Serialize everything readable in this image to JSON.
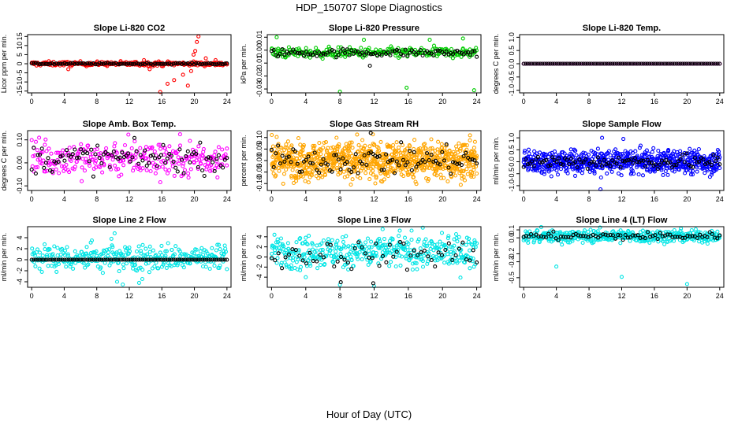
{
  "figure": {
    "title": "HDP_150707  Slope Diagnostics",
    "xlabel": "Hour of Day (UTC)"
  },
  "chart_data": [
    {
      "type": "scatter",
      "title": "Slope Li-820 CO2",
      "ylabel": "Licor ppm per min.",
      "xlim": [
        -0.5,
        24.5
      ],
      "ylim": [
        -16,
        16
      ],
      "xticks": [
        "0",
        "4",
        "8",
        "12",
        "16",
        "20",
        "24"
      ],
      "yticks": [
        {
          "v": -15,
          "label": "-15"
        },
        {
          "v": -10,
          "label": "-10"
        },
        {
          "v": -5,
          "label": "-5"
        },
        {
          "v": 0,
          "label": "0"
        },
        {
          "v": 5,
          "label": "5"
        },
        {
          "v": 10,
          "label": "10"
        },
        {
          "v": 15,
          "label": "15"
        }
      ],
      "series": [
        {
          "color": "#ff0000",
          "n": 260,
          "center": 0,
          "spread": 0.6,
          "outliers": [
            [
              15.8,
              -15.5
            ],
            [
              16.7,
              -11
            ],
            [
              17.5,
              -9
            ],
            [
              18.6,
              -6
            ],
            [
              19.2,
              -12
            ],
            [
              19.6,
              -4
            ],
            [
              19.9,
              5
            ],
            [
              20.1,
              7
            ],
            [
              20.3,
              12
            ],
            [
              20.5,
              15
            ],
            [
              21.4,
              3
            ],
            [
              22.6,
              2
            ],
            [
              4.5,
              -3
            ],
            [
              13.8,
              2
            ],
            [
              14.5,
              -3
            ]
          ]
        },
        {
          "color": "#000000",
          "n": 96,
          "center": 0,
          "spread": 0.2,
          "outliers": []
        }
      ]
    },
    {
      "type": "scatter",
      "title": "Slope Li-820 Pressure",
      "ylabel": "kPa per min.",
      "xlim": [
        -0.5,
        24.5
      ],
      "ylim": [
        -0.033,
        0.012
      ],
      "xticks": [
        "0",
        "4",
        "8",
        "12",
        "16",
        "20",
        "24"
      ],
      "yticks": [
        {
          "v": -0.03,
          "label": "-0.03"
        },
        {
          "v": -0.02,
          "label": "-0.02"
        },
        {
          "v": -0.01,
          "label": "-0.01"
        },
        {
          "v": 0.0,
          "label": "0.00"
        },
        {
          "v": 0.01,
          "label": "0.01"
        }
      ],
      "series": [
        {
          "color": "#00cc00",
          "n": 260,
          "center": -0.002,
          "spread": 0.002,
          "outliers": [
            [
              0.6,
              0.01
            ],
            [
              8.0,
              -0.032
            ],
            [
              15.8,
              -0.029
            ],
            [
              23.7,
              -0.031
            ],
            [
              18.5,
              0.008
            ],
            [
              22.4,
              0.009
            ],
            [
              10.8,
              0.008
            ]
          ]
        },
        {
          "color": "#000000",
          "n": 96,
          "center": -0.002,
          "spread": 0.0015,
          "outliers": [
            [
              11.5,
              -0.012
            ]
          ]
        }
      ]
    },
    {
      "type": "scatter",
      "title": "Slope Li-820 Temp.",
      "ylabel": "degrees C per min.",
      "xlim": [
        -0.5,
        24.5
      ],
      "ylim": [
        -1.1,
        1.1
      ],
      "xticks": [
        "0",
        "4",
        "8",
        "12",
        "16",
        "20",
        "24"
      ],
      "yticks": [
        {
          "v": -1.0,
          "label": "-1.0"
        },
        {
          "v": -0.5,
          "label": "-0.5"
        },
        {
          "v": 0.0,
          "label": "0.0"
        },
        {
          "v": 0.5,
          "label": "0.5"
        },
        {
          "v": 1.0,
          "label": "1.0"
        }
      ],
      "series": [
        {
          "color": "#ff00ff",
          "n": 96,
          "center": 0,
          "spread": 0.0,
          "outliers": []
        },
        {
          "color": "#000000",
          "n": 96,
          "center": 0,
          "spread": 0.0,
          "outliers": []
        }
      ]
    },
    {
      "type": "scatter",
      "title": "Slope Amb. Box Temp.",
      "ylabel": "degrees C per min.",
      "xlim": [
        -0.5,
        24.5
      ],
      "ylim": [
        -0.12,
        0.14
      ],
      "xticks": [
        "0",
        "4",
        "8",
        "12",
        "16",
        "20",
        "24"
      ],
      "yticks": [
        {
          "v": -0.1,
          "label": "-0.10"
        },
        {
          "v": 0.0,
          "label": "0.00"
        },
        {
          "v": 0.1,
          "label": "0.10"
        }
      ],
      "series": [
        {
          "color": "#ff00ff",
          "n": 300,
          "center": 0.02,
          "spread": 0.04,
          "outliers": []
        },
        {
          "color": "#000000",
          "n": 96,
          "center": 0.02,
          "spread": 0.03,
          "outliers": []
        }
      ]
    },
    {
      "type": "scatter",
      "title": "Slope Gas Stream RH",
      "ylabel": "percent per min.",
      "xlim": [
        -0.5,
        24.5
      ],
      "ylim": [
        -0.13,
        0.13
      ],
      "xticks": [
        "0",
        "4",
        "8",
        "12",
        "16",
        "20",
        "24"
      ],
      "yticks": [
        {
          "v": -0.1,
          "label": "-0.10"
        },
        {
          "v": -0.05,
          "label": "-0.05"
        },
        {
          "v": 0.0,
          "label": "0.00"
        },
        {
          "v": 0.05,
          "label": "0.05"
        },
        {
          "v": 0.1,
          "label": "0.10"
        }
      ],
      "series": [
        {
          "color": "#ffa500",
          "n": 900,
          "center": 0,
          "spread": 0.04,
          "outliers": []
        },
        {
          "color": "#000000",
          "n": 96,
          "center": 0,
          "spread": 0.03,
          "outliers": [
            [
              11.6,
              0.12
            ]
          ]
        }
      ]
    },
    {
      "type": "scatter",
      "title": "Slope Sample Flow",
      "ylabel": "ml/min per min.",
      "xlim": [
        -0.5,
        24.5
      ],
      "ylim": [
        -1.2,
        1.3
      ],
      "xticks": [
        "0",
        "4",
        "8",
        "12",
        "16",
        "20",
        "24"
      ],
      "yticks": [
        {
          "v": -1.0,
          "label": "-1.0"
        },
        {
          "v": -0.5,
          "label": "-0.5"
        },
        {
          "v": 0.0,
          "label": "0.0"
        },
        {
          "v": 0.5,
          "label": "0.5"
        },
        {
          "v": 1.0,
          "label": "1.0"
        }
      ],
      "series": [
        {
          "color": "#0000ff",
          "n": 700,
          "center": 0,
          "spread": 0.25,
          "outliers": [
            [
              9.4,
              -1.15
            ],
            [
              9.6,
              1.0
            ],
            [
              12.2,
              0.95
            ]
          ]
        },
        {
          "color": "#000000",
          "n": 96,
          "center": 0,
          "spread": 0.15,
          "outliers": []
        }
      ]
    },
    {
      "type": "scatter",
      "title": "Slope Line 2 Flow",
      "ylabel": "ml/min per min.",
      "xlim": [
        -0.5,
        24.5
      ],
      "ylim": [
        -5,
        6
      ],
      "xticks": [
        "0",
        "4",
        "8",
        "12",
        "16",
        "20",
        "24"
      ],
      "yticks": [
        {
          "v": -4,
          "label": "-4"
        },
        {
          "v": -2,
          "label": "-2"
        },
        {
          "v": 0,
          "label": "0"
        },
        {
          "v": 2,
          "label": "2"
        },
        {
          "v": 4,
          "label": "4"
        }
      ],
      "series": [
        {
          "color": "#00e5e5",
          "n": 330,
          "center": 0.4,
          "spread": 1.2,
          "outliers": [
            [
              10.5,
              -4
            ],
            [
              11.2,
              -4.5
            ],
            [
              13.2,
              -4.2
            ],
            [
              13.6,
              -3.5
            ],
            [
              10.2,
              4.8
            ],
            [
              9.8,
              3.8
            ],
            [
              7.4,
              3.5
            ]
          ]
        },
        {
          "color": "#000000",
          "n": 96,
          "center": 0,
          "spread": 0.0,
          "outliers": []
        }
      ]
    },
    {
      "type": "scatter",
      "title": "Slope Line 3 Flow",
      "ylabel": "ml/min per min.",
      "xlim": [
        -0.5,
        24.5
      ],
      "ylim": [
        -6,
        6
      ],
      "xticks": [
        "0",
        "4",
        "8",
        "12",
        "16",
        "20",
        "24"
      ],
      "yticks": [
        {
          "v": -4,
          "label": "-4"
        },
        {
          "v": -2,
          "label": "-2"
        },
        {
          "v": 0,
          "label": "0"
        },
        {
          "v": 2,
          "label": "2"
        },
        {
          "v": 4,
          "label": "4"
        }
      ],
      "series": [
        {
          "color": "#00e5e5",
          "n": 420,
          "center": 1,
          "spread": 1.6,
          "outliers": [
            [
              8.0,
              -5.5
            ],
            [
              12.0,
              -5.8
            ],
            [
              4.0,
              -4
            ],
            [
              13.0,
              5.5
            ],
            [
              15.0,
              5.2
            ]
          ]
        },
        {
          "color": "#000000",
          "n": 60,
          "center": 0.5,
          "spread": 1.4,
          "outliers": [
            [
              11.9,
              -5.2
            ],
            [
              8.1,
              -5.0
            ]
          ]
        }
      ]
    },
    {
      "type": "scatter",
      "title": "Slope Line 4 (LT) Flow",
      "ylabel": "ml/min per min.",
      "xlim": [
        -0.5,
        24.5
      ],
      "ylim": [
        -0.62,
        0.14
      ],
      "xticks": [
        "0",
        "4",
        "8",
        "12",
        "16",
        "20",
        "24"
      ],
      "yticks": [
        {
          "v": -0.5,
          "label": "-0.5"
        },
        {
          "v": -0.3,
          "label": "-0.3"
        },
        {
          "v": -0.2,
          "label": "-0.2"
        },
        {
          "v": 0.0,
          "label": "0.0"
        },
        {
          "v": 0.1,
          "label": "0.1"
        }
      ],
      "series": [
        {
          "color": "#00e5e5",
          "n": 420,
          "center": 0.02,
          "spread": 0.04,
          "outliers": [
            [
              4.0,
              -0.36
            ],
            [
              12.0,
              -0.49
            ],
            [
              20.0,
              -0.58
            ]
          ]
        },
        {
          "color": "#000000",
          "n": 80,
          "center": 0.02,
          "spread": 0.025,
          "outliers": []
        }
      ]
    }
  ]
}
